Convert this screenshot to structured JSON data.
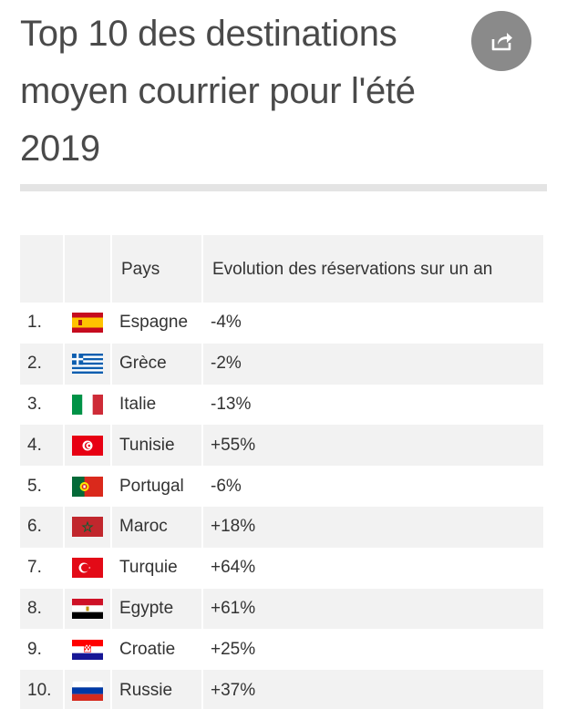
{
  "title": "Top 10 des destinations moyen courrier pour l'été 2019",
  "share_icon": "share-icon",
  "table": {
    "headers": {
      "rank": "",
      "flag": "",
      "country": "Pays",
      "evolution": "Evolution des réservations sur un an"
    },
    "rows": [
      {
        "rank": "1.",
        "country": "Espagne",
        "evolution": "-4%",
        "flag": "spain-flag-icon"
      },
      {
        "rank": "2.",
        "country": "Grèce",
        "evolution": "-2%",
        "flag": "greece-flag-icon"
      },
      {
        "rank": "3.",
        "country": "Italie",
        "evolution": "-13%",
        "flag": "italy-flag-icon"
      },
      {
        "rank": "4.",
        "country": "Tunisie",
        "evolution": "+55%",
        "flag": "tunisia-flag-icon"
      },
      {
        "rank": "5.",
        "country": "Portugal",
        "evolution": "-6%",
        "flag": "portugal-flag-icon"
      },
      {
        "rank": "6.",
        "country": "Maroc",
        "evolution": "+18%",
        "flag": "morocco-flag-icon"
      },
      {
        "rank": "7.",
        "country": "Turquie",
        "evolution": "+64%",
        "flag": "turkey-flag-icon"
      },
      {
        "rank": "8.",
        "country": "Egypte",
        "evolution": "+61%",
        "flag": "egypt-flag-icon"
      },
      {
        "rank": "9.",
        "country": "Croatie",
        "evolution": "+25%",
        "flag": "croatia-flag-icon"
      },
      {
        "rank": "10.",
        "country": "Russie",
        "evolution": "+37%",
        "flag": "russia-flag-icon"
      }
    ]
  }
}
